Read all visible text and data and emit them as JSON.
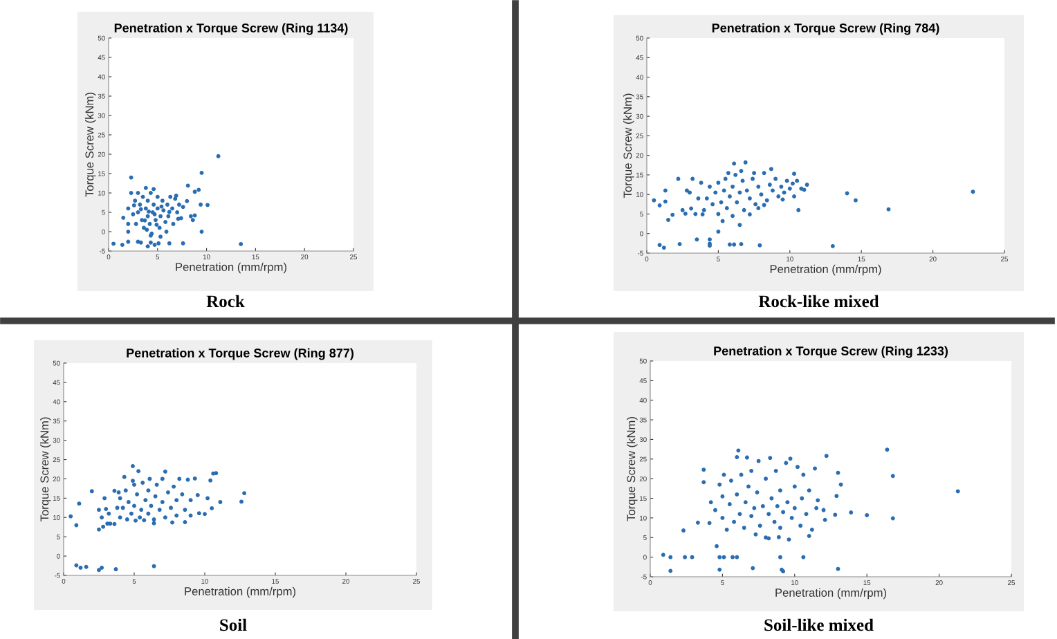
{
  "chart_data": [
    {
      "type": "scatter",
      "title": "Penetration x Torque Screw (Ring 1134)",
      "xlabel": "Penetration (mm/rpm)",
      "ylabel": "Torque Screw (kNm)",
      "annotations": [
        "Rock"
      ],
      "color": "#2a6db0",
      "marker": "circle",
      "xlim": [
        0,
        25
      ],
      "ylim": [
        -5,
        50
      ],
      "xticks": [
        0,
        5,
        10,
        15,
        20,
        25
      ],
      "yticks": [
        -5,
        0,
        5,
        10,
        15,
        20,
        25,
        30,
        35,
        40,
        45,
        50
      ],
      "x": [
        11.2,
        9.5,
        2.3,
        8.1,
        9.2,
        8.8,
        10.1,
        9.4,
        9.5,
        13.5,
        0.5,
        1.4,
        2,
        3,
        3.3,
        4,
        4.3,
        4.7,
        5.1,
        6.2,
        7.6,
        1.5,
        2,
        2,
        2.3,
        3.8,
        4.6,
        5.3,
        4.3,
        8.4,
        8.6,
        8.8,
        7.1,
        2,
        3,
        3.2,
        3.4,
        3.5,
        3.6,
        3.8,
        4,
        4,
        4.2,
        4.3,
        4.5,
        4.6,
        4.8,
        5,
        5,
        5.2,
        5.3,
        5.5,
        5.6,
        5.8,
        6,
        6.1,
        6.3,
        6.5,
        6.6,
        6.8,
        7,
        7.2,
        7.4,
        2.8,
        2.7,
        3,
        3.9,
        4.4,
        5.9,
        6.9,
        7.6,
        8,
        2.5,
        2.6,
        3.3,
        4.1,
        4.7,
        5.4,
        6.2,
        3.7,
        4.9
      ],
      "values": [
        19.5,
        15.2,
        14,
        11.9,
        10.8,
        10.3,
        6.9,
        7,
        0,
        -3.2,
        -3.1,
        -3.4,
        -2.6,
        -2.6,
        -2.8,
        -3.8,
        -2.8,
        -3.4,
        -3,
        -3,
        -3,
        3.6,
        0,
        2,
        10,
        11.3,
        11,
        -1.3,
        -1,
        4,
        3,
        4.2,
        3.3,
        6,
        5,
        7,
        3,
        9,
        1,
        6,
        4,
        8,
        2,
        10,
        5,
        7,
        3,
        6,
        9,
        1,
        4,
        8,
        5.5,
        2.5,
        7,
        4,
        9,
        6,
        2,
        8.5,
        5,
        7,
        3.5,
        2,
        8,
        10,
        0.5,
        -0.5,
        0,
        9.3,
        6.4,
        7.9,
        4.5,
        6.8,
        5.8,
        5.2,
        4.5,
        6.5,
        5.1,
        2.9,
        1.8
      ]
    },
    {
      "type": "scatter",
      "title": "Penetration x Torque Screw (Ring 784)",
      "xlabel": "Penetration (mm/rpm)",
      "ylabel": "Torque Screw (kNm)",
      "annotations": [
        "Rock-like mixed"
      ],
      "color": "#2a6db0",
      "marker": "circle",
      "xlim": [
        0,
        25
      ],
      "ylim": [
        -5,
        50
      ],
      "xticks": [
        0,
        5,
        10,
        15,
        20,
        25
      ],
      "yticks": [
        -5,
        0,
        5,
        10,
        15,
        20,
        25,
        30,
        35,
        40,
        45,
        50
      ],
      "x": [
        22.8,
        14,
        14.6,
        16.9,
        13,
        10.6,
        11.2,
        10.3,
        0.5,
        0.9,
        1.5,
        1.8,
        2.2,
        1.3,
        1.3,
        0.9,
        1.2,
        2.3,
        3.5,
        4.4,
        4.4,
        4.4,
        5.8,
        6.1,
        6.6,
        7.9,
        5,
        6.5,
        6.1,
        6.9,
        8.7,
        3.2,
        7.8,
        10.3,
        4,
        4.2,
        4.4,
        4.6,
        4.8,
        5,
        5,
        5.2,
        5.4,
        5.5,
        5.6,
        5.8,
        6,
        6,
        6.2,
        6.3,
        6.5,
        6.7,
        6.8,
        7,
        7.2,
        7.4,
        7.6,
        7.8,
        8,
        8.2,
        8.4,
        8.6,
        8.8,
        9,
        9.2,
        9.4,
        9.6,
        9.8,
        10,
        10.2,
        10.5,
        10.8,
        3.6,
        3.8,
        3.4,
        3,
        2.8,
        2.7,
        2.5,
        3.1,
        3.9,
        5.3,
        7.2,
        8.2,
        9.5,
        11,
        5.7,
        6.6,
        7.5
      ],
      "values": [
        10.7,
        10.3,
        8.5,
        6.2,
        -3.2,
        6,
        12.5,
        15.3,
        8.5,
        7.2,
        3.5,
        4.8,
        14,
        11,
        8.2,
        -2.9,
        -3.6,
        -2.7,
        -1.5,
        -1.5,
        -2.6,
        -3.1,
        -2.8,
        -2.8,
        -2.7,
        -3,
        0.5,
        2.2,
        17.9,
        18.2,
        16.5,
        14,
        6.5,
        9.5,
        6,
        9,
        12,
        7.5,
        10.5,
        5,
        13,
        8,
        11,
        14,
        6.5,
        9.5,
        12,
        4.5,
        15,
        8,
        10.5,
        13.5,
        6,
        11,
        9,
        14,
        7.5,
        12,
        10,
        15.5,
        8.5,
        12.5,
        11,
        14,
        9.5,
        12,
        10.5,
        13.5,
        11.5,
        12.8,
        13.5,
        11.5,
        9,
        13,
        5,
        10.5,
        11,
        5.1,
        6,
        6.4,
        4.9,
        3.2,
        4.9,
        7.3,
        8.7,
        11.2,
        15.5,
        16,
        15.5
      ]
    },
    {
      "type": "scatter",
      "title": "Penetration x Torque Screw (Ring 877)",
      "xlabel": "Penetration (mm/rpm)",
      "ylabel": "Torque Screw (kNm)",
      "annotations": [
        "Soil"
      ],
      "color": "#2a6db0",
      "marker": "circle",
      "xlim": [
        0,
        25
      ],
      "ylim": [
        -5,
        50
      ],
      "xticks": [
        0,
        5,
        10,
        15,
        20,
        25
      ],
      "yticks": [
        -5,
        0,
        5,
        10,
        15,
        20,
        25,
        30,
        35,
        40,
        45,
        50
      ],
      "x": [
        0.5,
        0.9,
        1.1,
        2,
        0.9,
        1.2,
        1.6,
        2.5,
        2.7,
        3.7,
        6.4,
        2.5,
        2.8,
        4.9,
        7.2,
        10.8,
        10.6,
        10.4,
        12.8,
        12.6,
        11.1,
        10.5,
        10,
        9.6,
        10.2,
        9.5,
        3.6,
        3.3,
        2.9,
        3.6,
        4,
        4,
        4.2,
        4.4,
        4.5,
        4.6,
        4.8,
        5,
        5,
        5.2,
        5.4,
        5.5,
        5.6,
        5.8,
        6,
        6,
        6.2,
        6.4,
        6.5,
        6.6,
        6.8,
        7,
        7,
        7.2,
        7.4,
        7.6,
        7.8,
        8,
        8,
        8.2,
        8.4,
        8.6,
        8.6,
        8.8,
        9,
        9,
        9.3,
        3.8,
        3.9,
        4.3,
        4.9,
        5.3,
        6.1,
        3.2,
        3,
        2.7,
        2.5,
        3.1,
        6.4,
        7.7,
        5.1,
        5.7
      ],
      "values": [
        10.3,
        8,
        13.6,
        16.8,
        -2.4,
        -3,
        -2.8,
        -3.6,
        -3,
        -3.4,
        -2.6,
        6.9,
        7.6,
        23.3,
        21.9,
        21.5,
        21.4,
        19.6,
        16.3,
        14.1,
        14,
        12.4,
        10.9,
        11.1,
        15,
        15.8,
        8.3,
        8.4,
        15,
        16.9,
        10,
        15,
        12.5,
        17,
        9.5,
        14,
        11,
        18.5,
        13,
        16,
        10,
        12,
        19,
        14.5,
        11,
        17,
        13,
        9.5,
        15.5,
        18.5,
        12,
        14,
        20,
        10,
        16.5,
        12.5,
        18,
        14.5,
        10.5,
        20,
        16,
        12,
        8.8,
        19.8,
        10.5,
        14.5,
        20.1,
        12.5,
        16.5,
        20.5,
        19.5,
        22,
        20,
        11,
        12.2,
        10,
        12,
        8.4,
        8.5,
        8.7,
        9.2,
        9.3
      ]
    },
    {
      "type": "scatter",
      "title": "Penetration x Torque Screw (Ring 1233)",
      "xlabel": "Penetration (mm/rpm)",
      "ylabel": "Torque Screw (kNm)",
      "annotations": [
        "Soil-like mixed"
      ],
      "color": "#2a6db0",
      "marker": "circle",
      "xlim": [
        0,
        25
      ],
      "ylim": [
        -5,
        50
      ],
      "xticks": [
        0,
        5,
        10,
        15,
        20,
        25
      ],
      "yticks": [
        -5,
        0,
        5,
        10,
        15,
        20,
        25,
        30,
        35,
        40,
        45,
        50
      ],
      "x": [
        21.3,
        16.4,
        16.8,
        16.8,
        15,
        13.9,
        13,
        13.2,
        12.9,
        12.8,
        12.2,
        12.1,
        13,
        0.9,
        1.4,
        2.4,
        2.9,
        4.8,
        5.1,
        5.7,
        6,
        9,
        10.6,
        1.4,
        4.8,
        7.1,
        9.1,
        9.2,
        4.6,
        2.3,
        3.3,
        4.1,
        3.7,
        3.7,
        6.1,
        6.7,
        4.2,
        4.5,
        4.8,
        5,
        5,
        5.1,
        5.3,
        5.5,
        5.6,
        5.8,
        6,
        6,
        6.2,
        6.3,
        6.5,
        6.6,
        6.8,
        7,
        7,
        7.2,
        7.4,
        7.5,
        7.6,
        7.8,
        8,
        8,
        8.2,
        8.3,
        8.4,
        8.6,
        8.7,
        8.8,
        9,
        9,
        9.2,
        9.4,
        9.5,
        9.6,
        9.8,
        10,
        10,
        10.2,
        10.4,
        10.5,
        10.6,
        10.8,
        11,
        11,
        11.2,
        11.4,
        11.5,
        11.6,
        12,
        7.3,
        8.2,
        8.9,
        9.7
      ],
      "values": [
        16.8,
        27.4,
        20.7,
        9.9,
        10.7,
        11.4,
        21.5,
        18.5,
        15.6,
        10.8,
        25.8,
        9.5,
        -3,
        0.6,
        0,
        0,
        0,
        0,
        0,
        0,
        0,
        0,
        0,
        -3.5,
        -3.2,
        -2.8,
        -3.2,
        -3.6,
        2.8,
        6.8,
        8.8,
        8.7,
        22.3,
        19.1,
        27.2,
        25.4,
        14,
        12,
        18.5,
        10,
        15.5,
        21,
        7,
        13.5,
        19.5,
        9,
        16,
        25.5,
        11,
        21,
        7.5,
        14,
        18,
        10.5,
        22,
        12.5,
        16.5,
        24.5,
        8,
        13,
        20,
        5,
        11,
        25.3,
        15,
        9,
        22,
        13,
        17,
        7.5,
        11.5,
        24,
        14,
        4.5,
        10,
        18,
        12.5,
        23,
        8,
        15,
        21,
        11,
        17,
        5.4,
        7,
        22.6,
        12.5,
        14.5,
        12,
        5.8,
        4.8,
        5.1,
        25.1
      ]
    }
  ]
}
